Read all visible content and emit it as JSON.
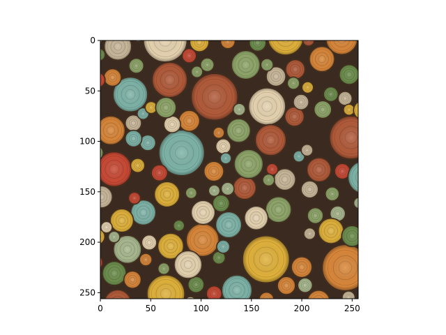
{
  "figure": {
    "image_subject": "stacked cut log ends painted in green, teal, orange, red and yellow",
    "image_size": [
      256,
      256
    ],
    "axes": {
      "x_ticks": [
        "0",
        "50",
        "100",
        "150",
        "200",
        "250"
      ],
      "y_ticks": [
        "0",
        "50",
        "100",
        "150",
        "200",
        "250"
      ],
      "x_range": [
        0,
        256
      ],
      "y_range": [
        0,
        256
      ],
      "y_inverted": true
    },
    "background_color": "#3a2a1f",
    "palette": [
      "#a9b98f",
      "#7fb4a8",
      "#d9873a",
      "#c94a35",
      "#e0b13b",
      "#8fa66a",
      "#c9b89a",
      "#b25b3a",
      "#6e8f4e",
      "#e6d3b0"
    ]
  }
}
